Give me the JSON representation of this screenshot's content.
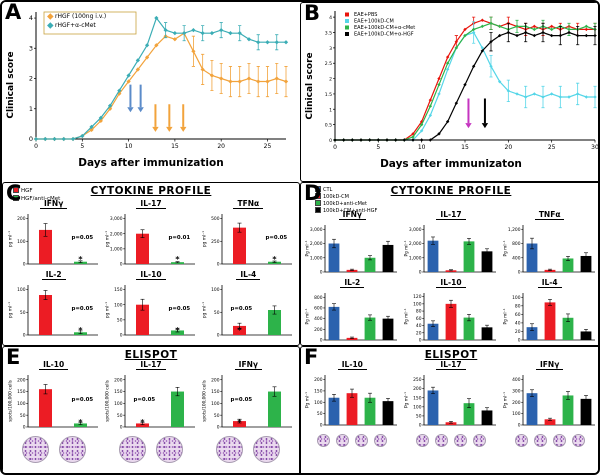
{
  "panels": {
    "a": {
      "letter": "A",
      "ylabel": "Clinical score",
      "xlabel": "Days after immunization"
    },
    "b": {
      "letter": "B",
      "ylabel": "Clinical score",
      "xlabel": "Days after immunizaton"
    },
    "c": {
      "letter": "C",
      "title": "CYTOKINE PROFILE"
    },
    "d": {
      "letter": "D",
      "title": "CYTOKINE PROFILE"
    },
    "e": {
      "letter": "E",
      "title": "ELISPOT"
    },
    "f": {
      "letter": "F",
      "title": "ELISPOT"
    }
  },
  "colors": {
    "orange": "#F2A33C",
    "teal": "#3BADB5",
    "red": "#EC1C24",
    "green": "#2DB34A",
    "blue": "#2B62AE",
    "black": "#000000",
    "cyan": "#55D6E8",
    "magenta": "#C535C0",
    "arrow_blue": "#5B8BC9"
  },
  "chart_data": [
    {
      "id": "A",
      "type": "line",
      "ylabel": "Clinical score",
      "xlabel": "Days after immunization",
      "xlim": [
        0,
        27
      ],
      "ylim": [
        0,
        4.2
      ],
      "xticks": [
        0,
        5,
        10,
        15,
        20,
        25
      ],
      "yticks": [
        0,
        1,
        2,
        3,
        4
      ],
      "arrow_len": 0.85,
      "series": [
        {
          "name": "rHGF (100ng i.v.)",
          "color": "#F2A33C",
          "err": 0.5,
          "err_from": 17,
          "err_every": 1,
          "y": [
            0,
            0,
            0,
            0,
            0,
            0.1,
            0.3,
            0.6,
            1,
            1.5,
            1.9,
            2.3,
            2.7,
            3.1,
            3.4,
            3.3,
            3.5,
            2.9,
            2.3,
            2.1,
            2,
            1.9,
            1.9,
            2,
            1.9,
            1.9,
            2,
            1.9
          ]
        },
        {
          "name": "rHGF+α-cMet",
          "color": "#3BADB5",
          "err": 0.25,
          "err_from": 14,
          "err_every": 2,
          "y": [
            0,
            0,
            0,
            0,
            0,
            0.1,
            0.4,
            0.7,
            1.1,
            1.6,
            2.1,
            2.6,
            3.1,
            4,
            3.6,
            3.5,
            3.5,
            3.6,
            3.5,
            3.5,
            3.6,
            3.5,
            3.5,
            3.3,
            3.2,
            3.2,
            3.2,
            3.2
          ]
        }
      ],
      "arrows": [
        {
          "x": 10.2,
          "top": 1.8,
          "color": "#5B8BC9"
        },
        {
          "x": 11.3,
          "top": 1.8,
          "color": "#5B8BC9"
        },
        {
          "x": 12.9,
          "top": 1.15,
          "color": "#F2A33C"
        },
        {
          "x": 14.4,
          "top": 1.15,
          "color": "#F2A33C"
        },
        {
          "x": 15.9,
          "top": 1.15,
          "color": "#F2A33C"
        }
      ]
    },
    {
      "id": "B",
      "type": "line",
      "ylabel": "Clinical score",
      "xlabel": "Days after immunizaton",
      "xlim": [
        0,
        30
      ],
      "ylim": [
        0,
        4.2
      ],
      "xticks": [
        0,
        5,
        10,
        15,
        20,
        25,
        30
      ],
      "yticks": [
        0,
        0.5,
        1,
        1.5,
        2,
        2.5,
        3,
        3.5,
        4
      ],
      "arrow_len": 0.9,
      "series": [
        {
          "name": "EAE+PBS",
          "color": "#E8140C",
          "err": 0.2,
          "err_from": 14,
          "err_every": 2,
          "y": [
            0,
            0,
            0,
            0,
            0,
            0,
            0,
            0,
            0,
            0.2,
            0.6,
            1.3,
            2,
            2.7,
            3.2,
            3.6,
            3.8,
            3.9,
            3.8,
            3.7,
            3.8,
            3.7,
            3.6,
            3.7,
            3.6,
            3.7,
            3.6,
            3.7,
            3.6,
            3.6,
            3.6
          ]
        },
        {
          "name": "EAE+100kD-CM",
          "color": "#55D6E8",
          "err": 0.35,
          "err_from": 16,
          "err_every": 2,
          "y": [
            0,
            0,
            0,
            0,
            0,
            0,
            0,
            0,
            0,
            0,
            0.3,
            0.8,
            1.5,
            2.3,
            3,
            3.4,
            3.5,
            3,
            2.4,
            1.9,
            1.6,
            1.5,
            1.4,
            1.5,
            1.4,
            1.5,
            1.4,
            1.4,
            1.5,
            1.4,
            1.4
          ]
        },
        {
          "name": "EAE+100kD-CM+α-cMet",
          "color": "#2DB34A",
          "err": 0.2,
          "err_from": 18,
          "err_every": 3,
          "y": [
            0,
            0,
            0,
            0,
            0,
            0,
            0,
            0,
            0,
            0.1,
            0.5,
            1.1,
            1.8,
            2.5,
            3,
            3.4,
            3.6,
            3.7,
            3.8,
            3.7,
            3.6,
            3.7,
            3.7,
            3.6,
            3.7,
            3.6,
            3.7,
            3.6,
            3.6,
            3.7,
            3.6
          ]
        },
        {
          "name": "EAE+100kD-CM+α-HGF",
          "color": "#000000",
          "err": 0.3,
          "err_from": 18,
          "err_every": 2,
          "y": [
            0,
            0,
            0,
            0,
            0,
            0,
            0,
            0,
            0,
            0,
            0,
            0,
            0.2,
            0.6,
            1.2,
            1.8,
            2.4,
            2.9,
            3.2,
            3.4,
            3.5,
            3.4,
            3.5,
            3.4,
            3.5,
            3.4,
            3.4,
            3.5,
            3.4,
            3.4,
            3.4
          ]
        }
      ],
      "arrows": [
        {
          "x": 15.4,
          "top": 1.35,
          "color": "#C535C0"
        },
        {
          "x": 17.3,
          "top": 1.35,
          "color": "#000000"
        }
      ]
    },
    {
      "id": "C",
      "type": "bar-group",
      "title": "CYTOKINE PROFILE",
      "ylabel": "pg ml⁻¹",
      "colors": [
        "#EC1C24",
        "#2DB34A"
      ],
      "legend": [
        "HGF",
        "HGF/anti-cMet"
      ],
      "charts": [
        {
          "title": "IFNγ",
          "ymax": 220,
          "yticks": [
            0,
            100,
            200
          ],
          "values": [
            150,
            10
          ],
          "errs": [
            28,
            4
          ],
          "note": {
            "text": "p=0.05",
            "star": true,
            "bar": 1
          }
        },
        {
          "title": "IL-17",
          "ymax": 3300,
          "yticks": [
            0,
            1000,
            2000,
            3000
          ],
          "values": [
            2000,
            120
          ],
          "errs": [
            260,
            40
          ],
          "note": {
            "text": "p=0.01",
            "star": true,
            "bar": 1
          }
        },
        {
          "title": "TFNα",
          "ymax": 550,
          "yticks": [
            0,
            250,
            500
          ],
          "values": [
            400,
            25
          ],
          "errs": [
            50,
            8
          ],
          "note": {
            "text": "p=0.05",
            "star": true,
            "bar": 1
          }
        },
        {
          "title": "IL-2",
          "ymax": 110,
          "yticks": [
            0,
            50,
            100
          ],
          "values": [
            88,
            6
          ],
          "errs": [
            10,
            3
          ],
          "note": {
            "text": "p=0.05",
            "star": true,
            "bar": 1
          }
        },
        {
          "title": "IL-10",
          "ymax": 165,
          "yticks": [
            0,
            50,
            100,
            150
          ],
          "values": [
            100,
            15
          ],
          "errs": [
            18,
            5
          ],
          "note": {
            "text": "p=0.05",
            "star": true,
            "bar": 1
          }
        },
        {
          "title": "IL-4",
          "ymax": 110,
          "yticks": [
            0,
            50,
            100
          ],
          "values": [
            20,
            55
          ],
          "errs": [
            6,
            9
          ],
          "note": {
            "text": "p=0.05",
            "star": true,
            "bar": 0
          }
        }
      ]
    },
    {
      "id": "D",
      "type": "bar-group",
      "title": "CYTOKINE PROFILE",
      "ylabel": "Pg ml⁻¹",
      "colors": [
        "#2B62AE",
        "#EC1C24",
        "#2DB34A",
        "#000000"
      ],
      "legend": [
        "CTL",
        "100kD-CM",
        "100kD+anti-cMet",
        "100kD+CM+anti-HGF"
      ],
      "charts": [
        {
          "title": "IFNγ",
          "ymax": 3300,
          "yticks": [
            0,
            1000,
            2000,
            3000
          ],
          "values": [
            2000,
            150,
            1000,
            1900
          ],
          "errs": [
            300,
            50,
            150,
            260
          ]
        },
        {
          "title": "IL-17",
          "ymax": 3300,
          "yticks": [
            0,
            1000,
            2000,
            3000
          ],
          "values": [
            2200,
            120,
            2150,
            1450
          ],
          "errs": [
            260,
            40,
            210,
            180
          ]
        },
        {
          "title": "TNFα",
          "ymax": 1320,
          "yticks": [
            0,
            400,
            800,
            1200
          ],
          "values": [
            800,
            60,
            380,
            450
          ],
          "errs": [
            150,
            20,
            60,
            90
          ]
        },
        {
          "title": "IL-2",
          "ymax": 880,
          "yticks": [
            0,
            200,
            400,
            600,
            800
          ],
          "values": [
            620,
            40,
            420,
            400
          ],
          "errs": [
            60,
            15,
            50,
            45
          ]
        },
        {
          "title": "IL-10",
          "ymax": 130,
          "yticks": [
            0,
            20,
            40,
            60,
            80,
            100,
            120
          ],
          "values": [
            45,
            100,
            62,
            35
          ],
          "errs": [
            8,
            10,
            9,
            6
          ]
        },
        {
          "title": "IL-4",
          "ymax": 110,
          "yticks": [
            0,
            20,
            40,
            60,
            80,
            100
          ],
          "values": [
            30,
            88,
            52,
            20
          ],
          "errs": [
            8,
            7,
            9,
            5
          ]
        }
      ]
    },
    {
      "id": "E",
      "type": "bar-group",
      "title": "ELISPOT",
      "ylabel": "spots/100,000 cells",
      "colors": [
        "#EC1C24",
        "#2DB34A"
      ],
      "wells_per_chart": 2,
      "charts": [
        {
          "title": "IL-10",
          "ymax": 220,
          "yticks": [
            0,
            50,
            100,
            150,
            200
          ],
          "values": [
            160,
            15
          ],
          "errs": [
            20,
            5
          ],
          "note": {
            "text": "p=0.05",
            "star": true,
            "bar": 1
          }
        },
        {
          "title": "IL-17",
          "ymax": 220,
          "yticks": [
            0,
            50,
            100,
            150,
            200
          ],
          "values": [
            15,
            150
          ],
          "errs": [
            5,
            18
          ],
          "note": {
            "text": "p=0.05",
            "star": true,
            "bar": 0
          }
        },
        {
          "title": "IFNγ",
          "ymax": 220,
          "yticks": [
            0,
            50,
            100,
            150,
            200
          ],
          "values": [
            25,
            150
          ],
          "errs": [
            8,
            20
          ],
          "note": {
            "text": "p=0.05",
            "star": true,
            "bar": 0
          }
        }
      ]
    },
    {
      "id": "F",
      "type": "bar-group",
      "title": "ELISPOT",
      "ylabel": "Pg ml⁻¹",
      "colors": [
        "#2B62AE",
        "#EC1C24",
        "#2DB34A",
        "#000000"
      ],
      "wells_per_chart": 4,
      "charts": [
        {
          "title": "IL-10",
          "ymax": 220,
          "yticks": [
            0,
            50,
            100,
            150,
            200
          ],
          "values": [
            120,
            140,
            120,
            105
          ],
          "errs": [
            15,
            18,
            20,
            12
          ]
        },
        {
          "title": "IL-17",
          "ymax": 275,
          "yticks": [
            0,
            50,
            100,
            150,
            200,
            250
          ],
          "values": [
            190,
            15,
            120,
            80
          ],
          "errs": [
            18,
            5,
            25,
            15
          ]
        },
        {
          "title": "IFNγ",
          "ymax": 440,
          "yticks": [
            0,
            100,
            200,
            300,
            400
          ],
          "values": [
            280,
            50,
            260,
            230
          ],
          "errs": [
            30,
            10,
            35,
            30
          ]
        }
      ]
    }
  ]
}
